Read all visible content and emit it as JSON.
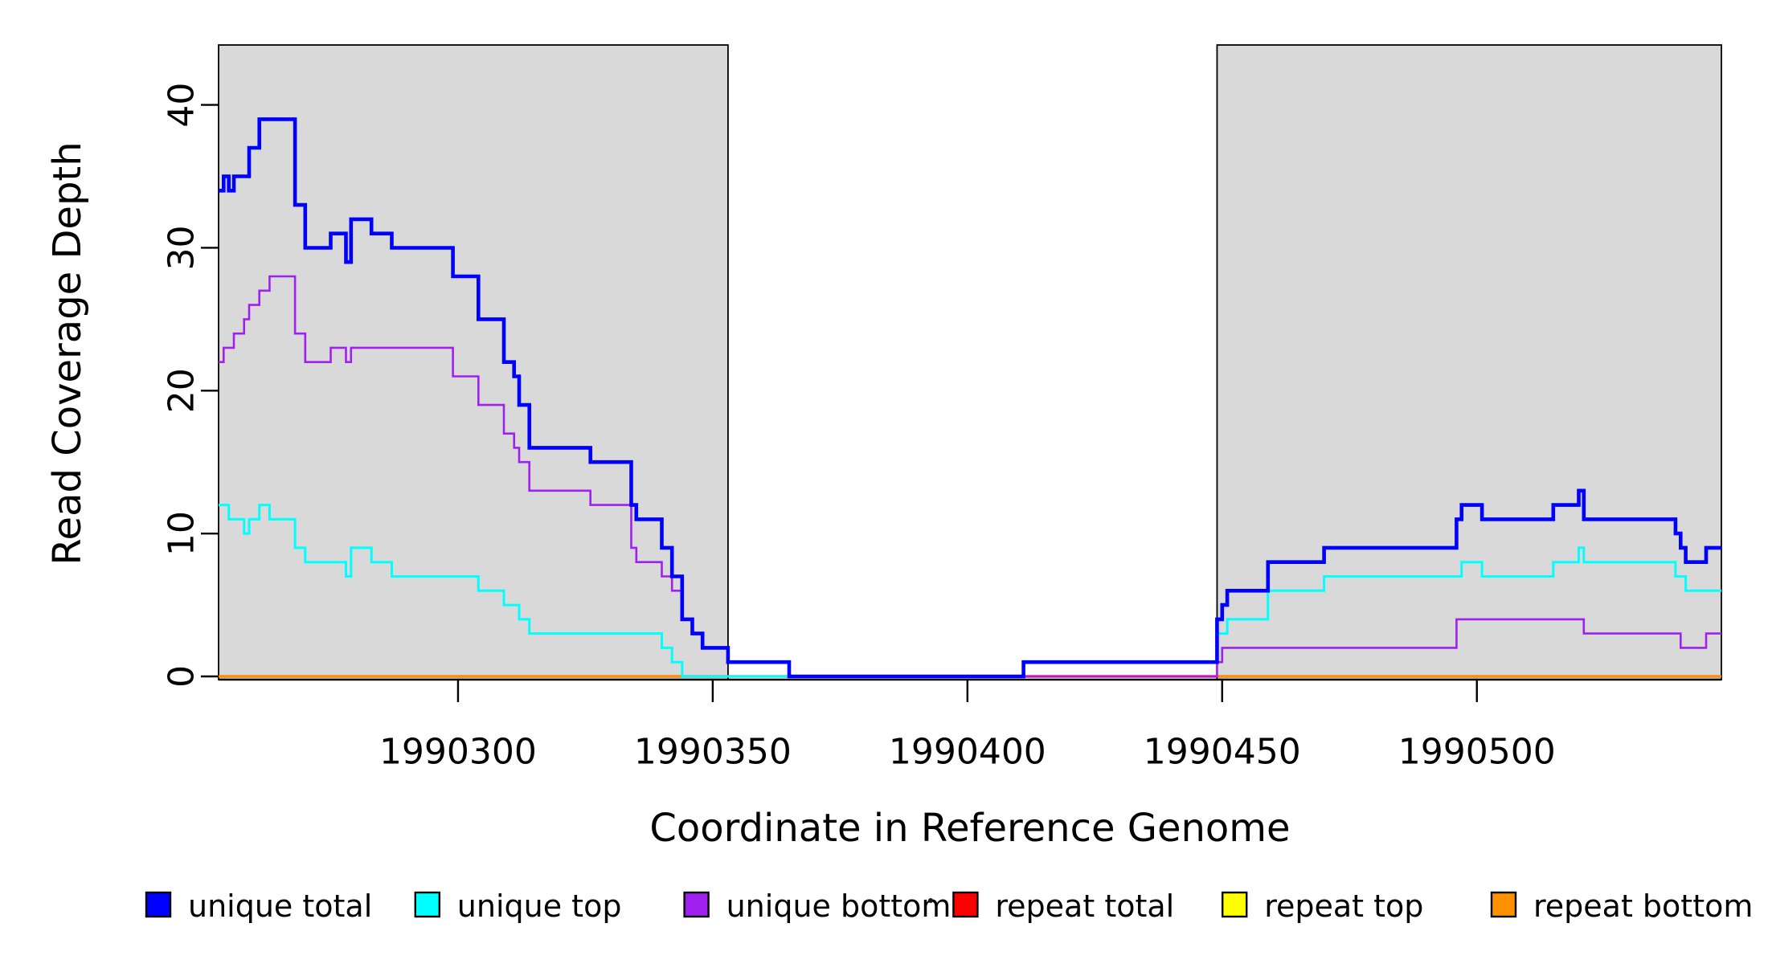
{
  "chart_data": {
    "type": "line",
    "subtype": "step-coverage-plot",
    "title": "",
    "xlabel": "Coordinate in Reference Genome",
    "ylabel": "Read Coverage Depth",
    "x_range": [
      1990253,
      1990548
    ],
    "y_range": [
      0,
      44
    ],
    "x_ticks": [
      1990300,
      1990350,
      1990400,
      1990450,
      1990500
    ],
    "y_ticks": [
      0,
      10,
      20,
      30,
      40
    ],
    "grid": false,
    "shade_color": "#d9d9d9",
    "shaded_regions": [
      {
        "name": "left-repeat-region",
        "from": 1990253,
        "to": 1990353
      },
      {
        "name": "right-repeat-region",
        "from": 1990449,
        "to": 1990548
      }
    ],
    "series": [
      {
        "name": "repeat top",
        "color": "#FFFF00",
        "width": 2.4,
        "segments": [
          {
            "steps": [
              [
                1990253,
                0
              ]
            ],
            "end": 1990548
          }
        ]
      },
      {
        "name": "repeat total",
        "color": "#FF0000",
        "width": 3.2,
        "segments": [
          {
            "steps": [
              [
                1990253,
                0
              ]
            ],
            "end": 1990548
          }
        ]
      },
      {
        "name": "repeat bottom",
        "color": "#FF9000",
        "width": 3.0,
        "segments": [
          {
            "steps": [
              [
                1990253,
                0
              ]
            ],
            "end": 1990353
          },
          {
            "steps": [
              [
                1990449,
                0
              ]
            ],
            "end": 1990548
          }
        ]
      },
      {
        "name": "unique bottom",
        "color": "#A020F0",
        "width": 2.6,
        "segments": [
          {
            "steps": [
              [
                1990253,
                22
              ],
              [
                1990254,
                23
              ],
              [
                1990256,
                24
              ],
              [
                1990258,
                25
              ],
              [
                1990259,
                26
              ],
              [
                1990261,
                27
              ],
              [
                1990263,
                28
              ],
              [
                1990268,
                24
              ],
              [
                1990270,
                22
              ],
              [
                1990275,
                23
              ],
              [
                1990278,
                22
              ],
              [
                1990279,
                23
              ],
              [
                1990299,
                21
              ],
              [
                1990304,
                19
              ],
              [
                1990309,
                17
              ],
              [
                1990311,
                16
              ],
              [
                1990312,
                15
              ],
              [
                1990314,
                13
              ],
              [
                1990326,
                12
              ],
              [
                1990334,
                9
              ],
              [
                1990335,
                8
              ],
              [
                1990340,
                7
              ],
              [
                1990342,
                6
              ],
              [
                1990344,
                4
              ],
              [
                1990346,
                3
              ],
              [
                1990348,
                2
              ],
              [
                1990353,
                1
              ],
              [
                1990365,
                0
              ],
              [
                1990449,
                1
              ],
              [
                1990450,
                2
              ],
              [
                1990496,
                4
              ],
              [
                1990521,
                3
              ],
              [
                1990540,
                2
              ],
              [
                1990545,
                3
              ]
            ],
            "end": 1990548
          }
        ]
      },
      {
        "name": "unique top",
        "color": "#00FFFF",
        "width": 3.0,
        "segments": [
          {
            "steps": [
              [
                1990253,
                12
              ],
              [
                1990255,
                11
              ],
              [
                1990258,
                10
              ],
              [
                1990259,
                11
              ],
              [
                1990261,
                12
              ],
              [
                1990263,
                11
              ],
              [
                1990268,
                9
              ],
              [
                1990270,
                8
              ],
              [
                1990278,
                7
              ],
              [
                1990279,
                9
              ],
              [
                1990283,
                8
              ],
              [
                1990287,
                7
              ],
              [
                1990304,
                6
              ],
              [
                1990309,
                5
              ],
              [
                1990312,
                4
              ],
              [
                1990314,
                3
              ],
              [
                1990340,
                2
              ],
              [
                1990342,
                1
              ],
              [
                1990344,
                0
              ],
              [
                1990411,
                1
              ],
              [
                1990449,
                3
              ],
              [
                1990451,
                4
              ],
              [
                1990459,
                6
              ],
              [
                1990470,
                7
              ],
              [
                1990497,
                8
              ],
              [
                1990501,
                7
              ],
              [
                1990515,
                8
              ],
              [
                1990520,
                9
              ],
              [
                1990521,
                8
              ],
              [
                1990539,
                7
              ],
              [
                1990541,
                6
              ]
            ],
            "end": 1990548
          }
        ]
      },
      {
        "name": "unique total",
        "color": "#0000FF",
        "width": 4.6,
        "segments": [
          {
            "steps": [
              [
                1990253,
                34
              ],
              [
                1990254,
                35
              ],
              [
                1990255,
                34
              ],
              [
                1990256,
                35
              ],
              [
                1990259,
                37
              ],
              [
                1990261,
                39
              ],
              [
                1990268,
                33
              ],
              [
                1990270,
                30
              ],
              [
                1990275,
                31
              ],
              [
                1990278,
                29
              ],
              [
                1990279,
                32
              ],
              [
                1990283,
                31
              ],
              [
                1990287,
                30
              ],
              [
                1990299,
                28
              ],
              [
                1990304,
                25
              ],
              [
                1990309,
                22
              ],
              [
                1990311,
                21
              ],
              [
                1990312,
                19
              ],
              [
                1990314,
                16
              ],
              [
                1990326,
                15
              ],
              [
                1990334,
                12
              ],
              [
                1990335,
                11
              ],
              [
                1990340,
                9
              ],
              [
                1990342,
                7
              ],
              [
                1990344,
                4
              ],
              [
                1990346,
                3
              ],
              [
                1990348,
                2
              ],
              [
                1990353,
                1
              ],
              [
                1990365,
                0
              ],
              [
                1990411,
                1
              ],
              [
                1990449,
                4
              ],
              [
                1990450,
                5
              ],
              [
                1990451,
                6
              ],
              [
                1990459,
                8
              ],
              [
                1990470,
                9
              ],
              [
                1990496,
                11
              ],
              [
                1990497,
                12
              ],
              [
                1990501,
                11
              ],
              [
                1990515,
                12
              ],
              [
                1990520,
                13
              ],
              [
                1990521,
                11
              ],
              [
                1990539,
                10
              ],
              [
                1990540,
                9
              ],
              [
                1990541,
                8
              ],
              [
                1990545,
                9
              ]
            ],
            "end": 1990548
          }
        ]
      }
    ],
    "legend": {
      "position": "bottom",
      "items": [
        {
          "label": "unique total",
          "color": "#0000FF"
        },
        {
          "label": "unique top",
          "color": "#00FFFF"
        },
        {
          "label": "unique bottom",
          "color": "#A020F0"
        },
        {
          "label": "repeat total",
          "color": "#FF0000"
        },
        {
          "label": "repeat top",
          "color": "#FFFF00"
        },
        {
          "label": "repeat bottom",
          "color": "#FF9000"
        }
      ]
    }
  }
}
